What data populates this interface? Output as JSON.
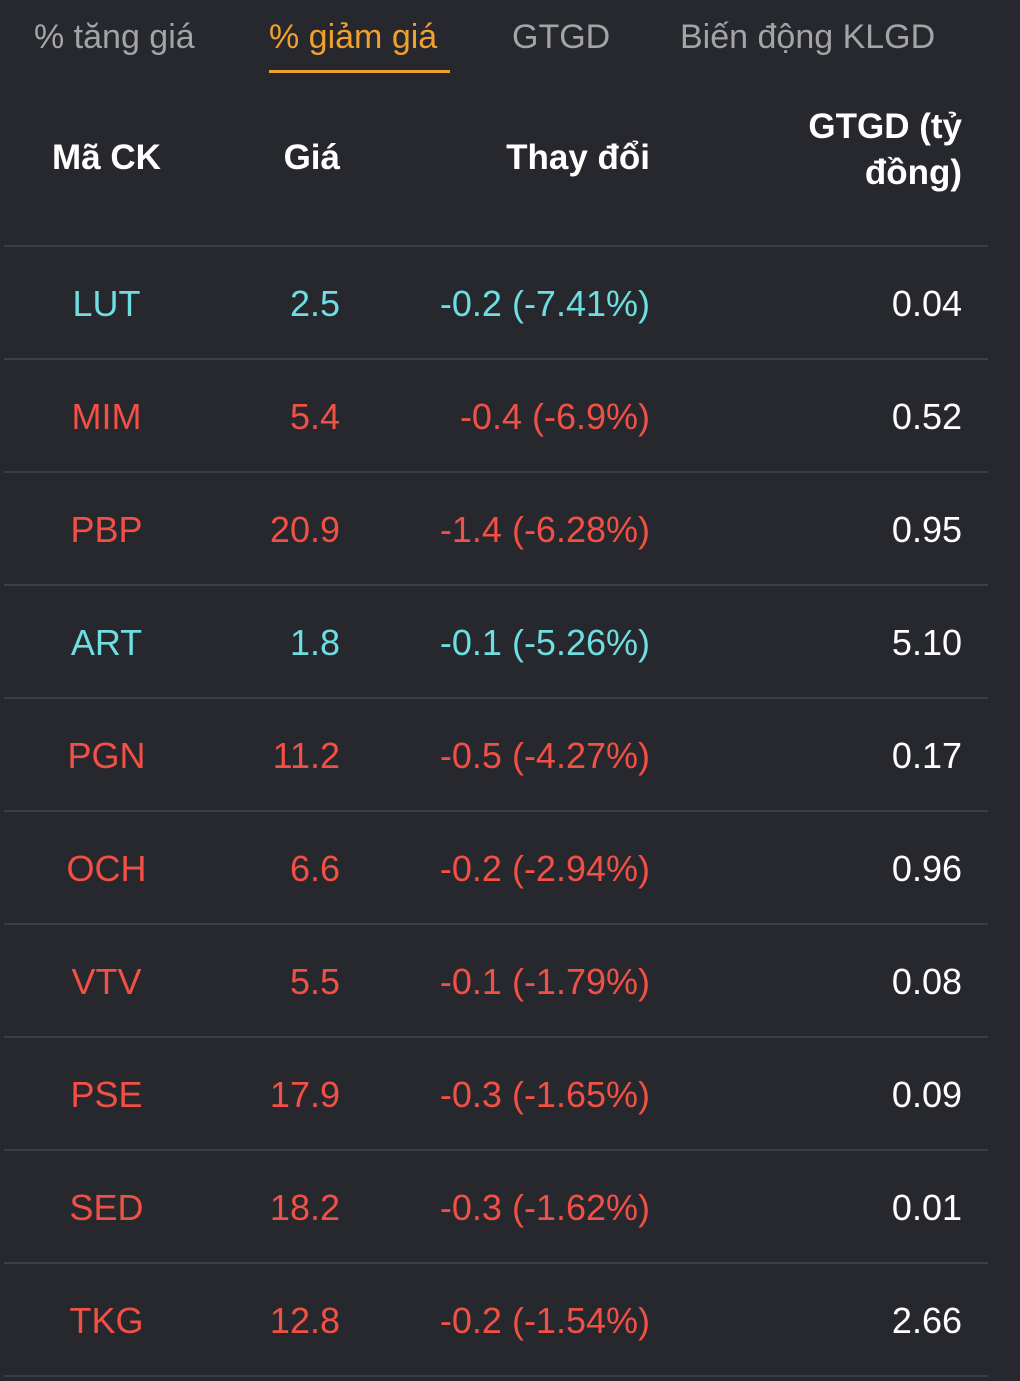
{
  "tabs": [
    {
      "label": "% tăng giá",
      "active": false
    },
    {
      "label": "% giảm giá",
      "active": true
    },
    {
      "label": "GTGD",
      "active": false
    },
    {
      "label": "Biến động KLGD",
      "active": false
    }
  ],
  "columns": {
    "code": "Mã CK",
    "price": "Giá",
    "change": "Thay đổi",
    "value_line1": "GTGD (tỷ",
    "value_line2": "đồng)"
  },
  "colors": {
    "accent": "#f0a02c",
    "down": "#f25045",
    "reference": "#6ddfe2",
    "background": "#27282d"
  },
  "rows": [
    {
      "code": "LUT",
      "price": "2.5",
      "change": "-0.2 (-7.41%)",
      "value": "0.04",
      "status": "ref"
    },
    {
      "code": "MIM",
      "price": "5.4",
      "change": "-0.4 (-6.9%)",
      "value": "0.52",
      "status": "down"
    },
    {
      "code": "PBP",
      "price": "20.9",
      "change": "-1.4 (-6.28%)",
      "value": "0.95",
      "status": "down"
    },
    {
      "code": "ART",
      "price": "1.8",
      "change": "-0.1 (-5.26%)",
      "value": "5.10",
      "status": "ref"
    },
    {
      "code": "PGN",
      "price": "11.2",
      "change": "-0.5 (-4.27%)",
      "value": "0.17",
      "status": "down"
    },
    {
      "code": "OCH",
      "price": "6.6",
      "change": "-0.2 (-2.94%)",
      "value": "0.96",
      "status": "down"
    },
    {
      "code": "VTV",
      "price": "5.5",
      "change": "-0.1 (-1.79%)",
      "value": "0.08",
      "status": "down"
    },
    {
      "code": "PSE",
      "price": "17.9",
      "change": "-0.3 (-1.65%)",
      "value": "0.09",
      "status": "down"
    },
    {
      "code": "SED",
      "price": "18.2",
      "change": "-0.3 (-1.62%)",
      "value": "0.01",
      "status": "down"
    },
    {
      "code": "TKG",
      "price": "12.8",
      "change": "-0.2 (-1.54%)",
      "value": "2.66",
      "status": "down"
    }
  ]
}
